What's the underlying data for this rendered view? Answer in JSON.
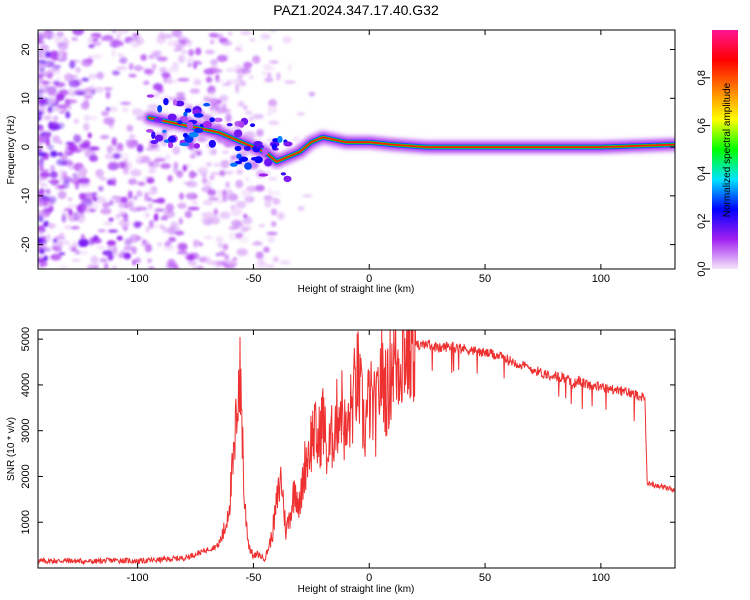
{
  "figure": {
    "title": "PAZ1.2024.347.17.40.G32"
  },
  "chart_data": [
    {
      "type": "heatmap",
      "xlabel": "Height of straight line (km)",
      "ylabel": "Frequency (Hz)",
      "xlim": [
        -143,
        132
      ],
      "ylim": [
        -25,
        24
      ],
      "xticks": [
        -100,
        -50,
        0,
        50,
        100
      ],
      "yticks": [
        -20,
        -10,
        0,
        10,
        20
      ],
      "colorbar": {
        "label": "Normalized spectral amplitude",
        "range": [
          0,
          1
        ],
        "ticks": [
          0.0,
          0.2,
          0.4,
          0.6,
          0.8
        ],
        "colormap": [
          "#f6e6fb",
          "#a020f0",
          "#0000ff",
          "#00e5ff",
          "#00ff00",
          "#ffff00",
          "#ff8000",
          "#ff0000",
          "#ff1493"
        ]
      },
      "ridge": {
        "description_points": [
          {
            "x": -95,
            "y": 6
          },
          {
            "x": -85,
            "y": 5
          },
          {
            "x": -75,
            "y": 4
          },
          {
            "x": -65,
            "y": 3
          },
          {
            "x": -55,
            "y": 1
          },
          {
            "x": -45,
            "y": -1
          },
          {
            "x": -40,
            "y": -3
          },
          {
            "x": -35,
            "y": -2
          },
          {
            "x": -30,
            "y": -1
          },
          {
            "x": -25,
            "y": 1
          },
          {
            "x": -20,
            "y": 2
          },
          {
            "x": -10,
            "y": 1
          },
          {
            "x": 0,
            "y": 1
          },
          {
            "x": 10,
            "y": 0.5
          },
          {
            "x": 25,
            "y": 0
          },
          {
            "x": 50,
            "y": 0
          },
          {
            "x": 75,
            "y": 0
          },
          {
            "x": 100,
            "y": 0
          },
          {
            "x": 132,
            "y": 0.5
          }
        ]
      }
    },
    {
      "type": "line",
      "xlabel": "Height of straight line (km)",
      "ylabel": "SNR (10 * v/v)",
      "xlim": [
        -143,
        132
      ],
      "ylim": [
        0,
        5200
      ],
      "xticks": [
        -100,
        -50,
        0,
        50,
        100
      ],
      "yticks": [
        1000,
        2000,
        3000,
        4000,
        5000
      ],
      "color": "#ee3030",
      "series": [
        {
          "x": [
            -143,
            -130,
            -120,
            -110,
            -100,
            -90,
            -80,
            -75,
            -70,
            -65,
            -62,
            -60,
            -58,
            -57,
            -56,
            -55,
            -54,
            -52,
            -50,
            -48,
            -45,
            -42,
            -40,
            -38,
            -36,
            -34,
            -32,
            -30,
            -28,
            -26,
            -24,
            -22,
            -20,
            -18,
            -15,
            -12,
            -10,
            -8,
            -5,
            -2,
            0,
            3,
            5,
            8,
            10,
            12,
            15,
            18,
            20,
            22,
            25,
            30,
            35,
            40,
            45,
            50,
            55,
            60,
            65,
            70,
            75,
            80,
            85,
            88,
            90,
            92,
            95,
            100,
            105,
            110,
            115,
            118,
            119,
            120,
            125,
            132
          ],
          "y": [
            150,
            160,
            140,
            170,
            150,
            180,
            220,
            300,
            400,
            500,
            900,
            1600,
            2600,
            3800,
            4200,
            3500,
            1500,
            500,
            250,
            300,
            200,
            700,
            1400,
            2000,
            800,
            1200,
            1800,
            1300,
            2200,
            2600,
            3000,
            2700,
            3300,
            2400,
            3100,
            3600,
            2800,
            3400,
            4200,
            3000,
            3700,
            3300,
            4300,
            3800,
            4600,
            4400,
            4800,
            4700,
            4900,
            4850,
            4900,
            4800,
            4850,
            4800,
            4750,
            4700,
            4650,
            4550,
            4450,
            4350,
            4250,
            4200,
            4150,
            4000,
            4100,
            4050,
            4000,
            3950,
            3900,
            3850,
            3800,
            3750,
            3700,
            1850,
            1800,
            1700
          ]
        }
      ]
    }
  ]
}
